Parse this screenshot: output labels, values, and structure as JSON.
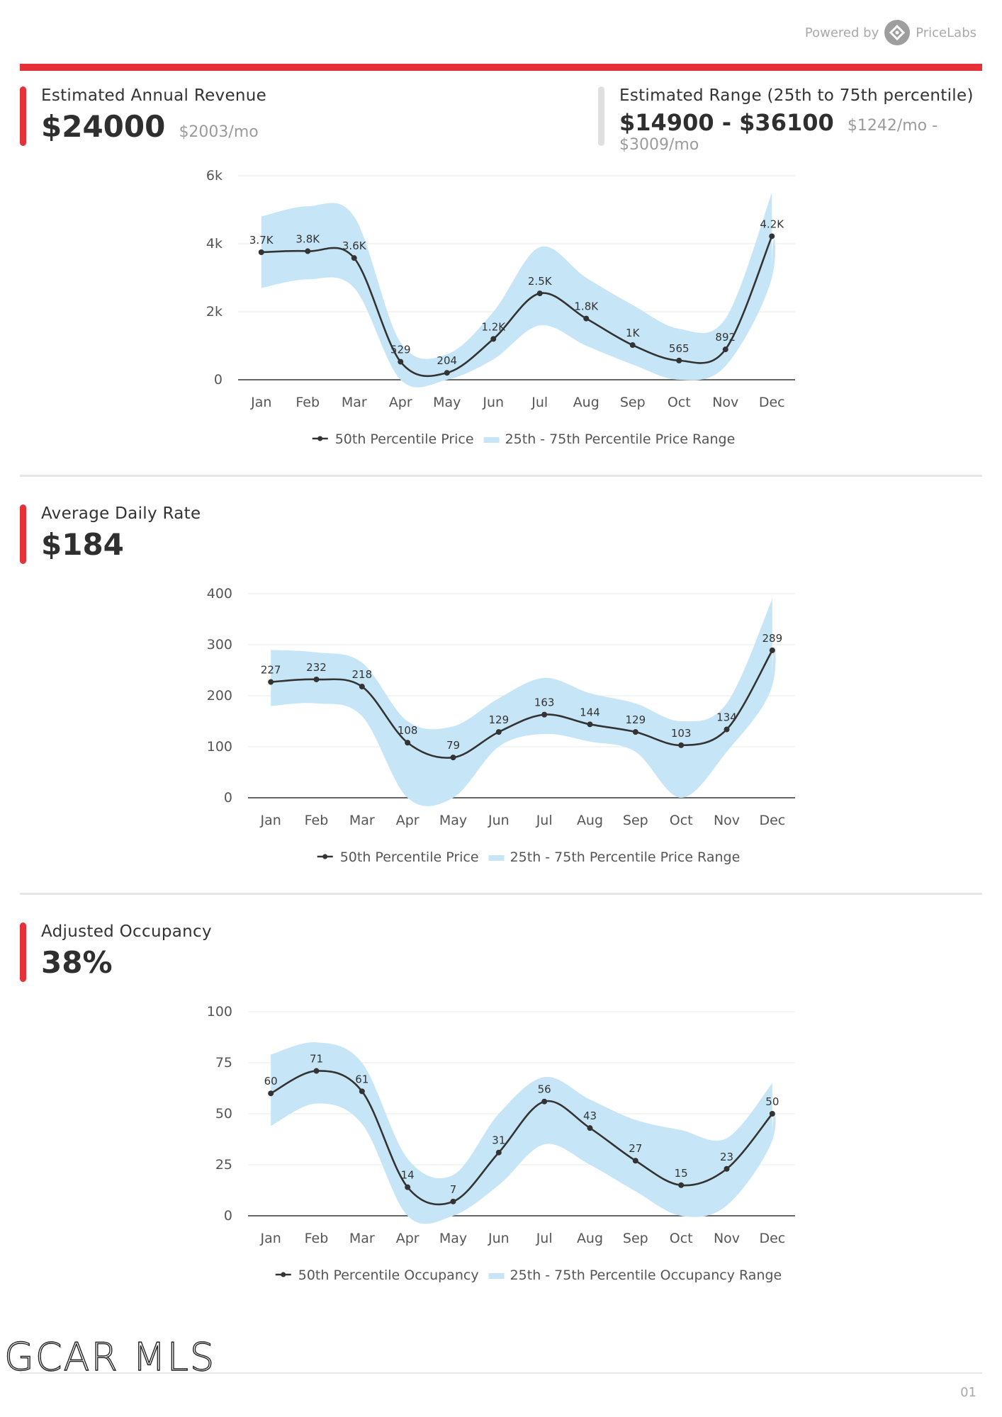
{
  "header": {
    "powered_by": "Powered by",
    "brand": "PriceLabs",
    "accent_color": "#e53238",
    "band_color": "#c6e6f8",
    "line_color": "#333333"
  },
  "revenue": {
    "label": "Estimated Annual Revenue",
    "value": "$24000",
    "monthly": "$2003/mo"
  },
  "range": {
    "label": "Estimated Range (25th to 75th percentile)",
    "value": "$14900 - $36100",
    "monthly": "$1242/mo - $3009/mo"
  },
  "adr": {
    "label": "Average Daily Rate",
    "value": "$184"
  },
  "occupancy": {
    "label": "Adjusted Occupancy",
    "value": "38%"
  },
  "footer": {
    "logo_text": "GCAR MLS",
    "page_number": "01"
  },
  "chart_data": [
    {
      "type": "line",
      "categories": [
        "Jan",
        "Feb",
        "Mar",
        "Apr",
        "May",
        "Jun",
        "Jul",
        "Aug",
        "Sep",
        "Oct",
        "Nov",
        "Dec"
      ],
      "yticks": [
        "0",
        "2k",
        "4k",
        "6k"
      ],
      "ylim": [
        0,
        6000
      ],
      "grid": true,
      "legend_position": "bottom",
      "series": [
        {
          "name": "50th Percentile Price",
          "values": [
            3750,
            3780,
            3580,
            529,
            204,
            1200,
            2540,
            1800,
            1020,
            565,
            892,
            4220
          ],
          "labels": [
            "3.7K",
            "3.8K",
            "3.6K",
            "529",
            "204",
            "1.2K",
            "2.5K",
            "1.8K",
            "1K",
            "565",
            "892",
            "4.2K"
          ]
        },
        {
          "name": "25th - 75th Percentile Price Range",
          "low": [
            2700,
            2950,
            2700,
            0,
            0,
            600,
            1600,
            1000,
            450,
            0,
            400,
            3000
          ],
          "high": [
            4800,
            5100,
            4800,
            1100,
            750,
            2000,
            3900,
            3000,
            2200,
            1500,
            1800,
            5500
          ]
        }
      ]
    },
    {
      "type": "line",
      "categories": [
        "Jan",
        "Feb",
        "Mar",
        "Apr",
        "May",
        "Jun",
        "Jul",
        "Aug",
        "Sep",
        "Oct",
        "Nov",
        "Dec"
      ],
      "yticks": [
        "0",
        "100",
        "200",
        "300",
        "400"
      ],
      "ylim": [
        0,
        400
      ],
      "grid": true,
      "legend_position": "bottom",
      "series": [
        {
          "name": "50th Percentile Price",
          "values": [
            227,
            232,
            218,
            108,
            79,
            129,
            163,
            144,
            129,
            103,
            134,
            289
          ],
          "labels": [
            "227",
            "232",
            "218",
            "108",
            "79",
            "129",
            "163",
            "144",
            "129",
            "103",
            "134",
            "289"
          ]
        },
        {
          "name": "25th - 75th Percentile Price Range",
          "low": [
            180,
            185,
            160,
            0,
            0,
            100,
            125,
            110,
            90,
            0,
            90,
            220
          ],
          "high": [
            290,
            285,
            265,
            150,
            140,
            195,
            235,
            205,
            185,
            150,
            185,
            390
          ]
        }
      ]
    },
    {
      "type": "line",
      "categories": [
        "Jan",
        "Feb",
        "Mar",
        "Apr",
        "May",
        "Jun",
        "Jul",
        "Aug",
        "Sep",
        "Oct",
        "Nov",
        "Dec"
      ],
      "yticks": [
        "0",
        "25",
        "50",
        "75",
        "100"
      ],
      "ylim": [
        0,
        100
      ],
      "grid": true,
      "legend_position": "bottom",
      "series": [
        {
          "name": "50th Percentile Occupancy",
          "values": [
            60,
            71,
            61,
            14,
            7,
            31,
            56,
            43,
            27,
            15,
            23,
            50
          ],
          "labels": [
            "60",
            "71",
            "61",
            "14",
            "7",
            "31",
            "56",
            "43",
            "27",
            "15",
            "23",
            "50"
          ]
        },
        {
          "name": "25th - 75th Percentile Occupancy Range",
          "low": [
            44,
            55,
            45,
            0,
            0,
            15,
            35,
            25,
            12,
            0,
            5,
            37
          ],
          "high": [
            79,
            85,
            75,
            28,
            20,
            50,
            68,
            57,
            47,
            42,
            38,
            65
          ]
        }
      ]
    }
  ]
}
